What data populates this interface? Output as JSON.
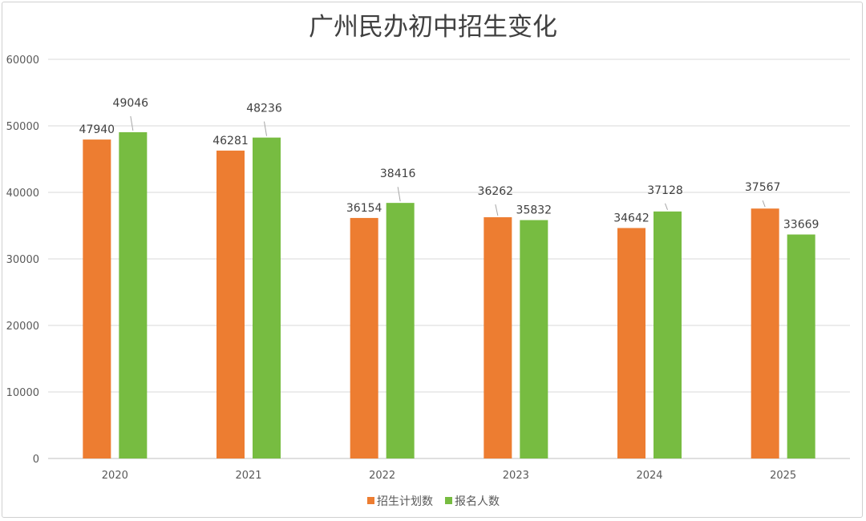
{
  "chart_data": {
    "type": "bar",
    "title": "广州民办初中招生变化",
    "categories": [
      "2020",
      "2021",
      "2022",
      "2023",
      "2024",
      "2025"
    ],
    "series": [
      {
        "name": "招生计划数",
        "color": "#ED7D31",
        "values": [
          47940,
          46281,
          36154,
          36262,
          34642,
          37567
        ]
      },
      {
        "name": "报名人数",
        "color": "#77BC41",
        "values": [
          49046,
          48236,
          38416,
          35832,
          37128,
          33669
        ]
      }
    ],
    "ylim": [
      0,
      60000
    ],
    "yticks": [
      "0",
      "10000",
      "20000",
      "30000",
      "40000",
      "50000",
      "60000"
    ],
    "xlabel": "",
    "ylabel": "",
    "grid": true,
    "legend_position": "bottom"
  }
}
